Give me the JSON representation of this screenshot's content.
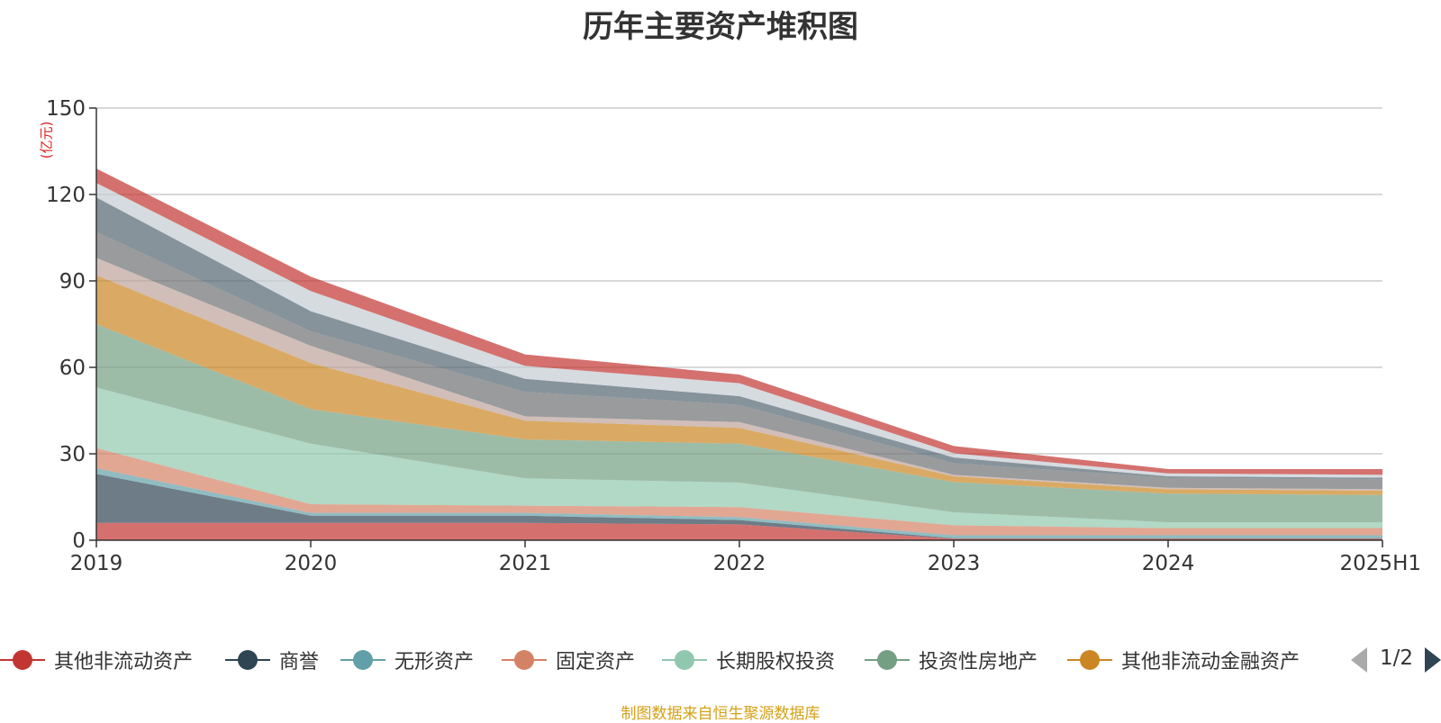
{
  "chart_data": {
    "type": "area",
    "stacked": true,
    "title": "历年主要资产堆积图",
    "ylabel": "(亿元)",
    "xlabel": "",
    "ylim": [
      0,
      150
    ],
    "yticks": [
      0,
      30,
      60,
      90,
      120,
      150
    ],
    "categories": [
      "2019",
      "2020",
      "2021",
      "2022",
      "2023",
      "2024",
      "2025H1"
    ],
    "grid": true,
    "legend_position": "bottom",
    "series": [
      {
        "name": "其他非流动资产",
        "color": "#c23531",
        "values": [
          6,
          6,
          6,
          5.5,
          0.5,
          0.5,
          0.5
        ]
      },
      {
        "name": "商誉",
        "color": "#2f4554",
        "values": [
          17,
          2.5,
          2.5,
          1.5,
          0.2,
          0.2,
          0.2
        ]
      },
      {
        "name": "无形资产",
        "color": "#61a0a8",
        "values": [
          2,
          1,
          1,
          1,
          1,
          1,
          1
        ]
      },
      {
        "name": "固定资产",
        "color": "#d48265",
        "values": [
          7,
          3,
          2.5,
          3.5,
          3.5,
          2.5,
          2.5
        ]
      },
      {
        "name": "长期股权投资",
        "color": "#91c7ae",
        "values": [
          21,
          21,
          9.5,
          8.5,
          4.5,
          2,
          2
        ]
      },
      {
        "name": "投资性房地产",
        "color": "#749f83",
        "values": [
          22,
          12,
          13.5,
          13.5,
          10.5,
          10,
          9.5
        ]
      },
      {
        "name": "其他非流动金融资产",
        "color": "#ca8622",
        "values": [
          17,
          16,
          6.5,
          5.5,
          2,
          1.5,
          1.5
        ]
      },
      {
        "color": "#bda29a",
        "values": [
          6,
          6,
          1.5,
          2,
          0.5,
          0.5,
          0.5
        ]
      },
      {
        "color": "#6e7074",
        "values": [
          9,
          5,
          8.5,
          6,
          4,
          3.5,
          3.5
        ]
      },
      {
        "color": "#546570",
        "values": [
          12,
          7,
          4.5,
          3,
          2,
          0.5,
          0.5
        ]
      },
      {
        "color": "#c4ccd3",
        "values": [
          5,
          7,
          4.5,
          4.5,
          1.5,
          1,
          1
        ]
      },
      {
        "color": "#c23531",
        "values": [
          5,
          5,
          4,
          3,
          2.5,
          1.5,
          2
        ]
      }
    ]
  },
  "legend": {
    "page_text": "1/2",
    "visible_items": [
      "其他非流动资产",
      "商誉",
      "无形资产",
      "固定资产",
      "长期股权投资",
      "投资性房地产",
      "其他非流动金融资产"
    ]
  },
  "source_note": "制图数据来自恒生聚源数据库"
}
